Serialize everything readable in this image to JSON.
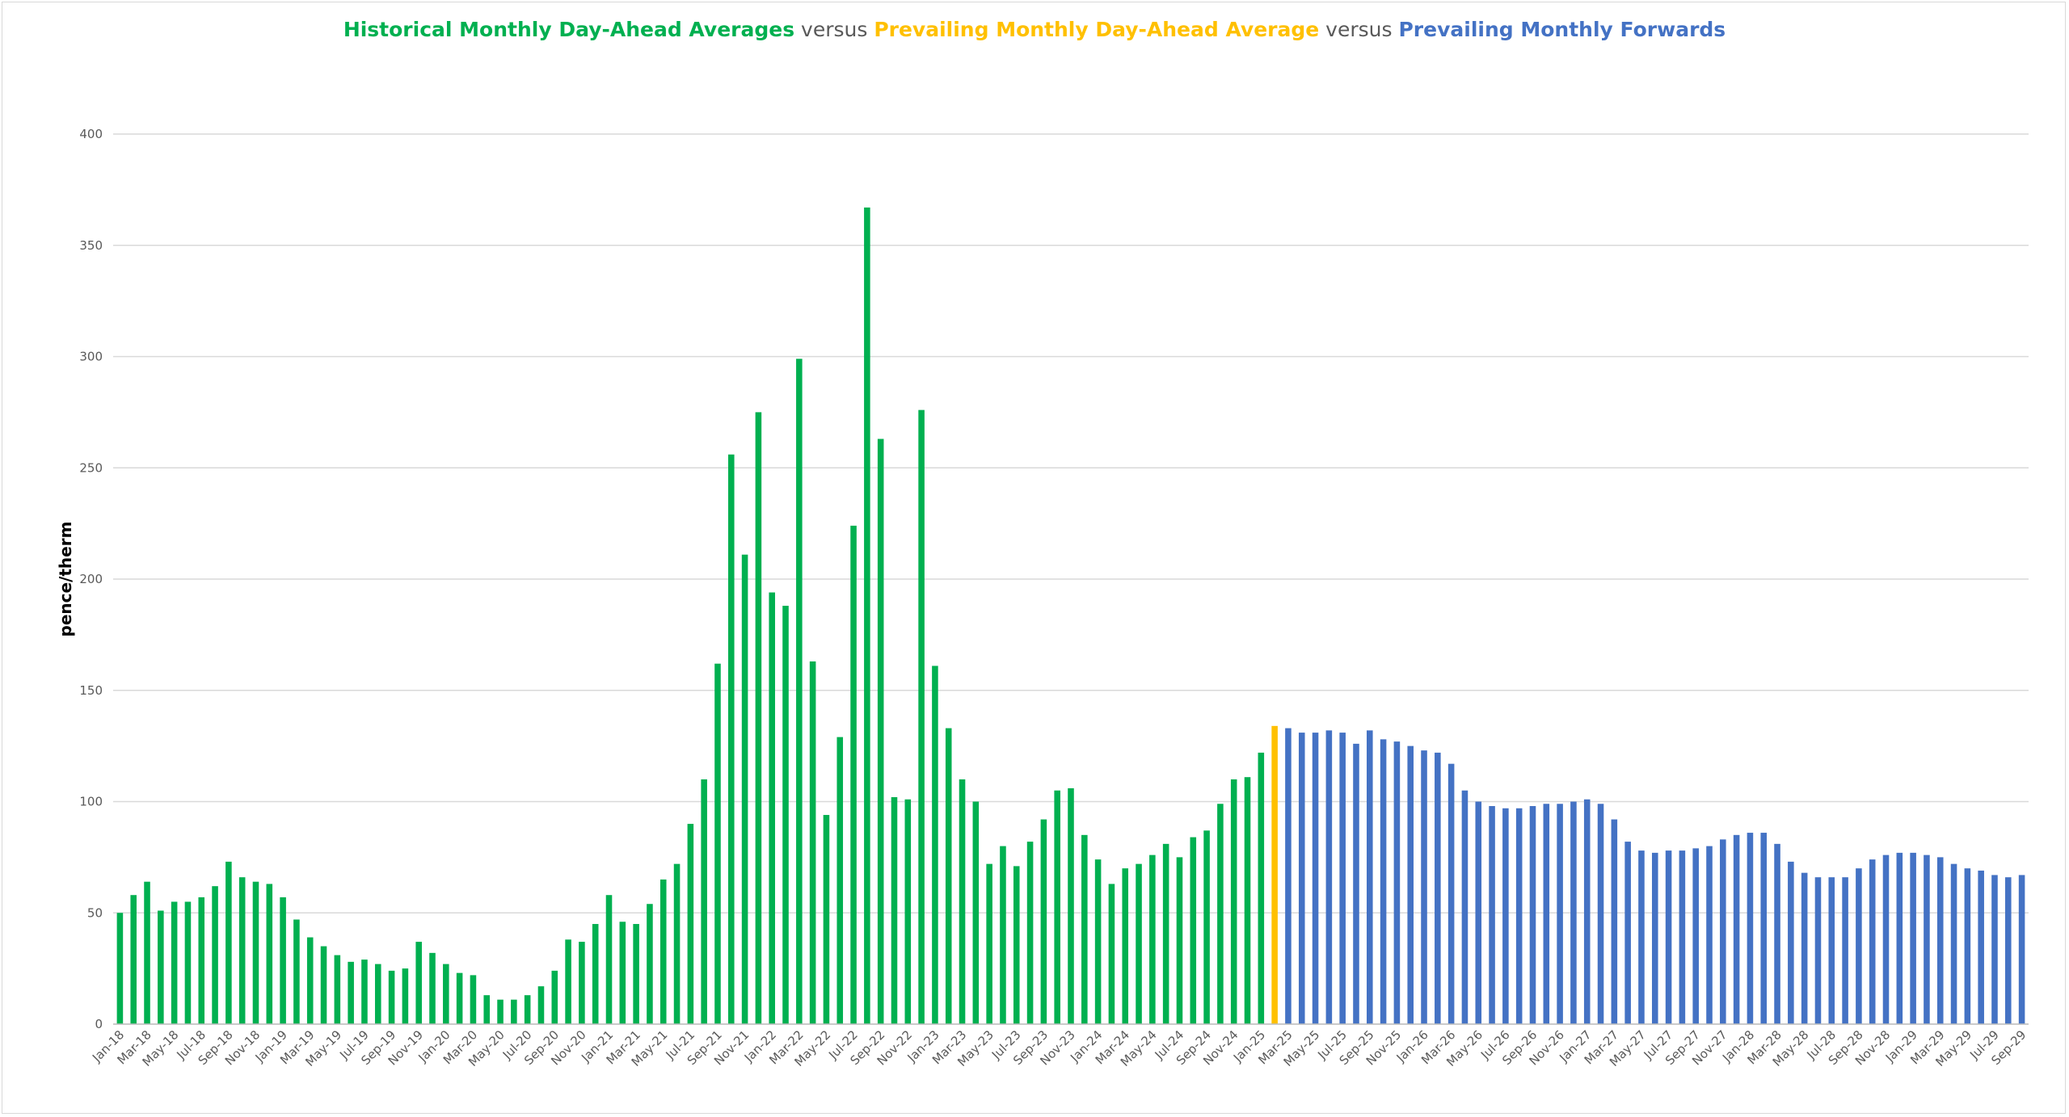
{
  "title": {
    "part1": "Historical Monthly Day-Ahead Averages",
    "sep1": " versus ",
    "part2": "Prevailing Monthly Day-Ahead Average",
    "sep2": " versus ",
    "part3": "Prevailing Monthly Forwards"
  },
  "colors": {
    "historical": "#00b050",
    "prevailing": "#ffc000",
    "forwards": "#4472c4",
    "separator": "#595959",
    "grid": "#d9d9d9"
  },
  "chart_data": {
    "type": "bar",
    "ylabel": "pence/therm",
    "xlabel": "",
    "ylim": [
      0,
      400
    ],
    "yticks": [
      0,
      50,
      100,
      150,
      200,
      250,
      300,
      350,
      400
    ],
    "grid": true,
    "x_tick_labels": [
      "Jan-18",
      "Mar-18",
      "May-18",
      "Jul-18",
      "Sep-18",
      "Nov-18",
      "Jan-19",
      "Mar-19",
      "May-19",
      "Jul-19",
      "Sep-19",
      "Nov-19",
      "Jan-20",
      "Mar-20",
      "May-20",
      "Jul-20",
      "Sep-20",
      "Nov-20",
      "Jan-21",
      "Mar-21",
      "May-21",
      "Jul-21",
      "Sep-21",
      "Nov-21",
      "Jan-22",
      "Mar-22",
      "May-22",
      "Jul-22",
      "Sep-22",
      "Nov-22",
      "Jan-23",
      "Mar-23",
      "May-23",
      "Jul-23",
      "Sep-23",
      "Nov-23",
      "Jan-24",
      "Mar-24",
      "May-24",
      "Jul-24",
      "Sep-24",
      "Nov-24",
      "Jan-25",
      "Mar-25",
      "May-25",
      "Jul-25",
      "Sep-25",
      "Nov-25",
      "Jan-26",
      "Mar-26",
      "May-26",
      "Jul-26",
      "Sep-26",
      "Nov-26",
      "Jan-27",
      "Mar-27",
      "May-27",
      "Jul-27",
      "Sep-27",
      "Nov-27",
      "Jan-28",
      "Mar-28",
      "May-28",
      "Jul-28",
      "Sep-28",
      "Nov-28",
      "Jan-29",
      "Mar-29",
      "May-29",
      "Jul-29",
      "Sep-29"
    ],
    "series": [
      {
        "name": "Historical Monthly Day-Ahead Averages",
        "start": "Jan-18",
        "values": [
          50,
          58,
          64,
          51,
          55,
          55,
          57,
          62,
          73,
          66,
          64,
          63,
          57,
          47,
          39,
          35,
          31,
          28,
          29,
          27,
          24,
          25,
          37,
          32,
          27,
          23,
          22,
          13,
          11,
          11,
          13,
          17,
          24,
          38,
          37,
          45,
          58,
          46,
          45,
          54,
          65,
          72,
          90,
          110,
          162,
          256,
          211,
          275,
          194,
          188,
          299,
          163,
          94,
          129,
          224,
          367,
          263,
          102,
          101,
          276,
          161,
          133,
          110,
          100,
          72,
          80,
          71,
          82,
          92,
          105,
          106,
          85,
          74,
          63,
          70,
          72,
          76,
          81,
          75,
          84,
          87,
          99,
          110,
          111,
          122
        ]
      },
      {
        "name": "Prevailing Monthly Day-Ahead Average",
        "start": "Feb-25",
        "values": [
          134
        ]
      },
      {
        "name": "Prevailing Monthly Forwards",
        "start": "Mar-25",
        "values": [
          133,
          131,
          131,
          132,
          131,
          126,
          132,
          128,
          127,
          125,
          123,
          122,
          117,
          105,
          100,
          98,
          97,
          97,
          98,
          99,
          99,
          100,
          101,
          99,
          92,
          82,
          78,
          77,
          78,
          78,
          79,
          80,
          83,
          85,
          86,
          86,
          81,
          73,
          68,
          66,
          66,
          66,
          70,
          74,
          76,
          77,
          77,
          76,
          75,
          72,
          70,
          69,
          67,
          66,
          67
        ]
      }
    ]
  }
}
